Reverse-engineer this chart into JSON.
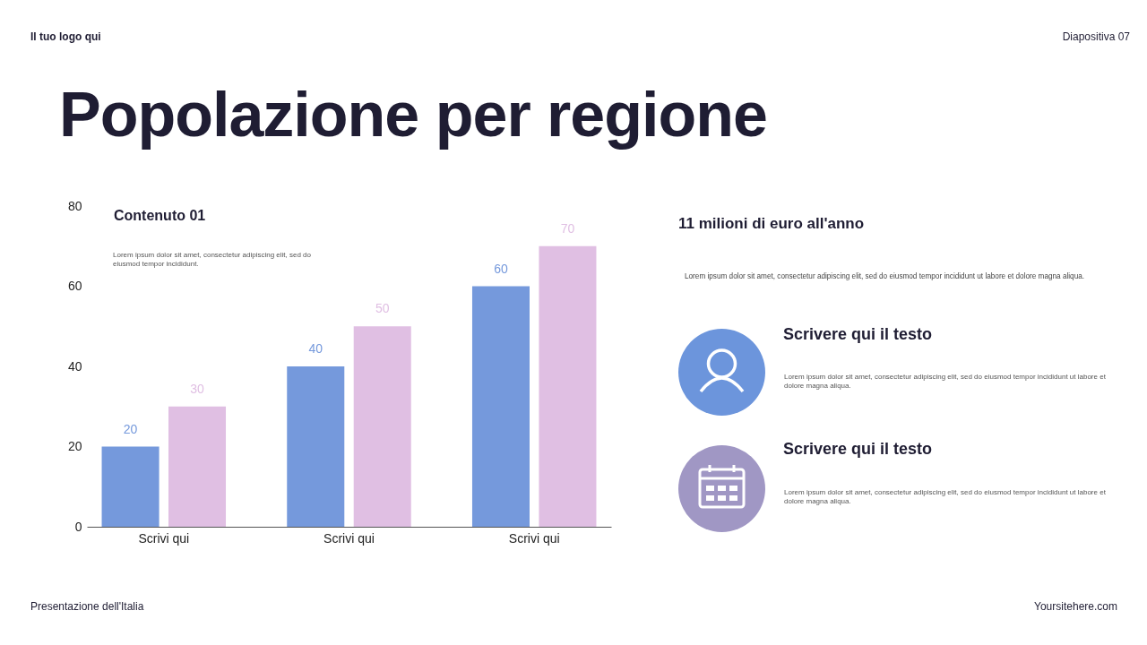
{
  "chart_data": {
    "type": "bar",
    "title": "Popolazione per regione",
    "categories": [
      "Scrivi qui",
      "Scrivi qui",
      "Scrivi qui"
    ],
    "series": [
      {
        "color": "#7599dc",
        "values": [
          20,
          40,
          60
        ]
      },
      {
        "color": "#e0bfe3",
        "values": [
          30,
          50,
          70
        ]
      }
    ],
    "ylim": [
      0,
      80
    ],
    "yticks": [
      0,
      20,
      40,
      60,
      80
    ],
    "grid": false,
    "legend": false,
    "data_labels": true,
    "annotations": [
      "Contenuto 01",
      "Lorem ipsum dolor sit amet, consectetur adipiscing elit, sed do eiusmod tempor incididunt.",
      "11 milioni di euro all'anno",
      "Lorem ipsum dolor sit amet, consectetur adipiscing elit, sed do eiusmod tempor incididunt ut labore et dolore magna aliqua.",
      "Scrivere qui il testo",
      "Lorem ipsum dolor sit amet, consectetur adipiscing elit, sed do eiusmod tempor incididunt ut labore et dolore magna aliqua.",
      "Scrivere qui il testo",
      "Lorem ipsum dolor sit amet, consectetur adipiscing elit, sed do eiusmod tempor incididunt ut labore et dolore magna aliqua.",
      "Il tuo logo qui",
      "Diapositiva 07",
      "Presentazione dell'Italia",
      "Yoursitehere.com"
    ]
  }
}
